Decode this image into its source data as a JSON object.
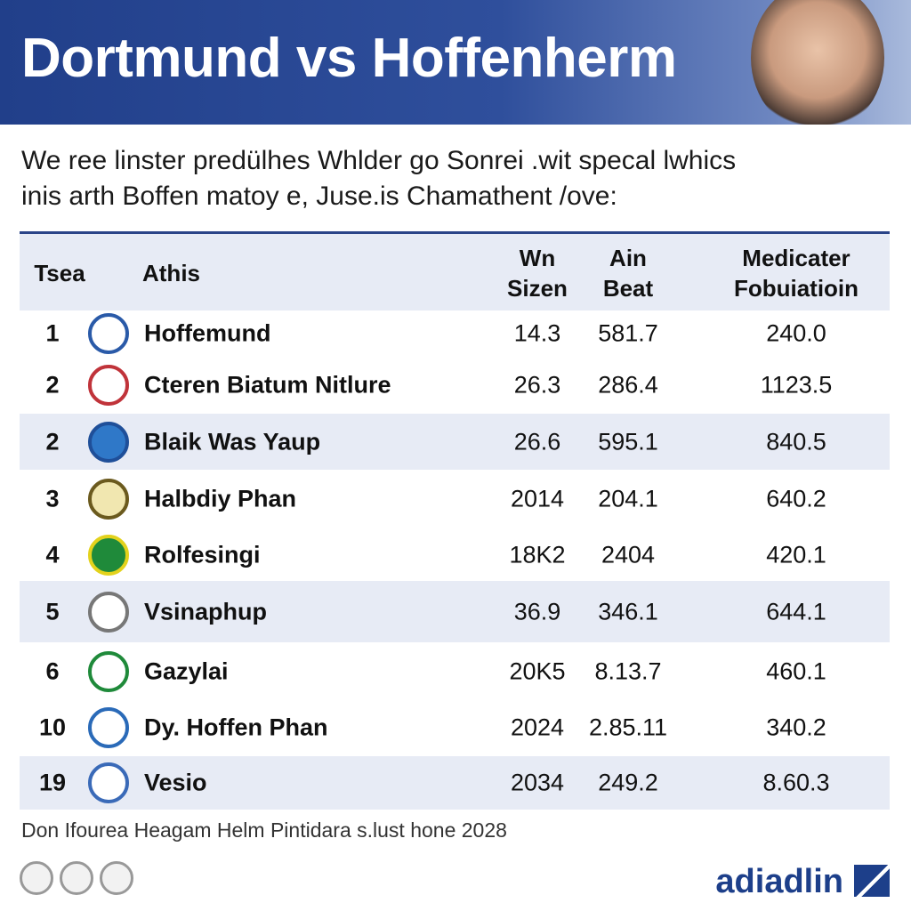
{
  "header": {
    "title": "Dortmund vs Hoffenherm"
  },
  "intro": [
    "We ree linster predülhes Whlder go Sonrei .wit specal lwhics",
    "inis arth Boffen matoy e, Juse.is Chamathent /ove:"
  ],
  "table": {
    "columns": [
      [
        "Tsea"
      ],
      [
        "Athis"
      ],
      [
        "Wn",
        "Sizen"
      ],
      [
        "Ain",
        "Beat"
      ],
      [
        "Medicater",
        "Fobuiatioin"
      ]
    ],
    "rows": [
      [
        "1",
        "Hoffemund",
        "14.3",
        "581.7",
        "240.0"
      ],
      [
        "2",
        "Cteren Biatum Nitlure",
        "26.3",
        "286.4",
        "1123.5"
      ],
      [
        "2",
        "Blaik Was Yaup",
        "26.6",
        "595.1",
        "840.5"
      ],
      [
        "3",
        "Halbdiy Phan",
        "2014",
        "204.1",
        "640.2"
      ],
      [
        "4",
        "Rolfesingi",
        "18K2",
        "2404",
        "420.1"
      ],
      [
        "5",
        "Vsinaphup",
        "36.9",
        "346.1",
        "644.1"
      ],
      [
        "6",
        "Gazylai",
        "20K5",
        "8.13.7",
        "460.1"
      ],
      [
        "10",
        "Dy. Hoffen Phan",
        "2024",
        "2.85.11",
        "340.2"
      ],
      [
        "19",
        "Vesio",
        "2034",
        "249.2",
        "8.60.3"
      ]
    ]
  },
  "footer": "Don Ifourea Heagam Helm Pintidara s.lust hone 2028",
  "brand": "adiadlin"
}
